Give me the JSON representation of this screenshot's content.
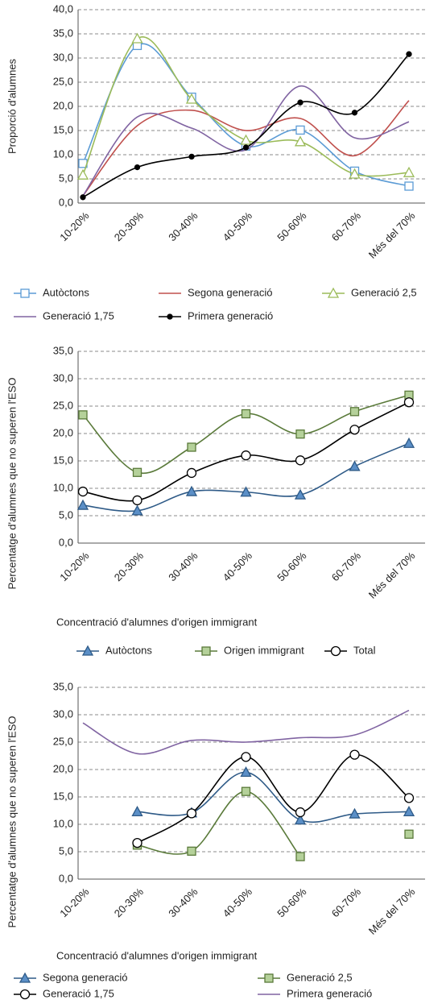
{
  "chart_data": [
    {
      "type": "line",
      "smooth": true,
      "y_label": "Proporció d'alumnes",
      "categories": [
        "10-20%",
        "20-30%",
        "30-40%",
        "40-50%",
        "50-60%",
        "60-70%",
        "Més del 70%"
      ],
      "ylim": [
        0,
        40
      ],
      "yticks": [
        {
          "value": 0,
          "label": "0,0"
        },
        {
          "value": 5,
          "label": "5,0"
        },
        {
          "value": 10,
          "label": "10,0"
        },
        {
          "value": 15,
          "label": "15,0"
        },
        {
          "value": 20,
          "label": "20,0"
        },
        {
          "value": 25,
          "label": "25,0"
        },
        {
          "value": 30,
          "label": "30,0"
        },
        {
          "value": 35,
          "label": "35,0"
        },
        {
          "value": 40,
          "label": "40,0"
        }
      ],
      "grid": true,
      "series": [
        {
          "name": "Autòctons",
          "color": "#5b9bd5",
          "marker": "square",
          "marker_fill": "#ffffff",
          "values": [
            8.2,
            32.6,
            21.9,
            11.8,
            15.1,
            6.6,
            3.5
          ]
        },
        {
          "name": "Segona generació",
          "color": "#c0504d",
          "values": [
            1.5,
            16.0,
            19.2,
            15.0,
            17.5,
            9.8,
            21.2
          ]
        },
        {
          "name": "Generació 2,5",
          "color": "#9bbb59",
          "marker": "triangle",
          "marker_fill": "#ffffff",
          "values": [
            5.8,
            34.0,
            21.5,
            13.0,
            12.7,
            6.0,
            6.3
          ]
        },
        {
          "name": "Generació 1,75",
          "color": "#8064a2",
          "values": [
            1.5,
            17.8,
            15.5,
            11.0,
            24.2,
            13.5,
            16.8
          ]
        },
        {
          "name": "Primera generació",
          "color": "#000000",
          "marker": "circle",
          "marker_fill": "#000000",
          "values": [
            1.2,
            7.4,
            9.6,
            11.5,
            20.8,
            18.7,
            30.8
          ]
        }
      ]
    },
    {
      "type": "line",
      "smooth": true,
      "y_label": "Percentatge d'alumnes que no superen l'ESO",
      "x_label": "Concentració d'alumnes d'origen immigrant",
      "categories": [
        "10-20%",
        "20-30%",
        "30-40%",
        "40-50%",
        "50-60%",
        "60-70%",
        "Més del 70%"
      ],
      "ylim": [
        0,
        35
      ],
      "yticks": [
        {
          "value": 0,
          "label": "0,0"
        },
        {
          "value": 5,
          "label": "5,0"
        },
        {
          "value": 10,
          "label": "10,0"
        },
        {
          "value": 15,
          "label": "15,0"
        },
        {
          "value": 20,
          "label": "20,0"
        },
        {
          "value": 25,
          "label": "25,0"
        },
        {
          "value": 30,
          "label": "30,0"
        },
        {
          "value": 35,
          "label": "35,0"
        }
      ],
      "grid": true,
      "series": [
        {
          "name": "Autòctons",
          "color": "#2e5a87",
          "marker": "triangle",
          "marker_fill": "#5b8fc7",
          "values": [
            6.9,
            5.9,
            9.4,
            9.3,
            8.8,
            14.0,
            18.2
          ]
        },
        {
          "name": "Origen immigrant",
          "color": "#5a7a3a",
          "marker": "square",
          "marker_fill": "#b5d19a",
          "values": [
            23.4,
            12.9,
            17.5,
            23.6,
            19.9,
            24.0,
            27.0
          ]
        },
        {
          "name": "Total",
          "color": "#000000",
          "marker": "circle",
          "marker_fill": "#ffffff",
          "values": [
            9.4,
            7.8,
            12.8,
            16.0,
            15.1,
            20.7,
            25.7
          ]
        }
      ]
    },
    {
      "type": "line",
      "smooth": true,
      "y_label": "Percentatge d'alumnes que no superen l'ESO",
      "x_label": "Concentració d'alumnes d'origen immigrant",
      "categories": [
        "10-20%",
        "20-30%",
        "30-40%",
        "40-50%",
        "50-60%",
        "60-70%",
        "Més del 70%"
      ],
      "ylim": [
        0,
        35
      ],
      "yticks": [
        {
          "value": 0,
          "label": "0,0"
        },
        {
          "value": 5,
          "label": "5,0"
        },
        {
          "value": 10,
          "label": "10,0"
        },
        {
          "value": 15,
          "label": "15,0"
        },
        {
          "value": 20,
          "label": "20,0"
        },
        {
          "value": 25,
          "label": "25,0"
        },
        {
          "value": 30,
          "label": "30,0"
        },
        {
          "value": 35,
          "label": "35,0"
        }
      ],
      "grid": true,
      "series": [
        {
          "name": "Segona generació",
          "color": "#2e5a87",
          "marker": "triangle",
          "marker_fill": "#5b8fc7",
          "values": [
            null,
            12.3,
            12.1,
            19.5,
            10.8,
            11.9,
            12.3
          ]
        },
        {
          "name": "Generació 2,5",
          "color": "#5a7a3a",
          "marker": "square",
          "marker_fill": "#b5d19a",
          "values": [
            null,
            6.2,
            5.1,
            16.0,
            4.1,
            null,
            8.2
          ]
        },
        {
          "name": "Generació 1,75",
          "color": "#000000",
          "marker": "circle",
          "marker_fill": "#ffffff",
          "values": [
            null,
            6.6,
            12.0,
            22.3,
            12.2,
            22.7,
            14.8
          ]
        },
        {
          "name": "Primera generació",
          "color": "#8064a2",
          "values": [
            28.5,
            22.9,
            25.3,
            25.0,
            25.8,
            26.3,
            30.8
          ]
        }
      ]
    }
  ]
}
